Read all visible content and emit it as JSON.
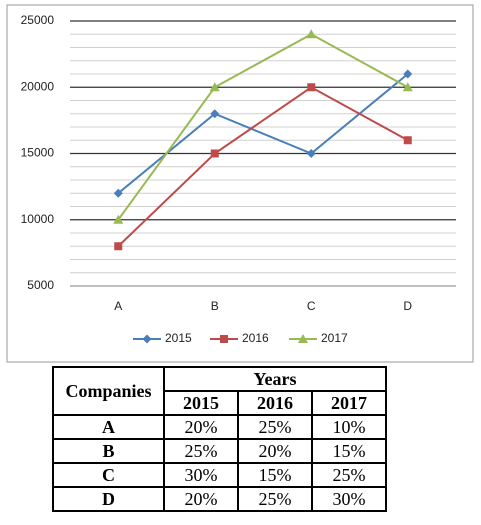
{
  "chart_data": {
    "type": "line",
    "categories": [
      "A",
      "B",
      "C",
      "D"
    ],
    "series": [
      {
        "name": "2015",
        "color": "#4a7ebb",
        "marker": "diamond",
        "values": [
          12000,
          18000,
          15000,
          21000
        ]
      },
      {
        "name": "2016",
        "color": "#be4b48",
        "marker": "square",
        "values": [
          8000,
          15000,
          20000,
          16000
        ]
      },
      {
        "name": "2017",
        "color": "#98b954",
        "marker": "triangle",
        "values": [
          10000,
          20000,
          24000,
          20000
        ]
      }
    ],
    "ylim": [
      5000,
      25000
    ],
    "yticks": [
      5000,
      10000,
      15000,
      20000,
      25000
    ],
    "grid": true,
    "minor_grid_step": 1000,
    "legend": "bottom"
  },
  "table": {
    "header": "Companies",
    "group": "Years",
    "columns": [
      "2015",
      "2016",
      "2017"
    ],
    "rows": [
      [
        "A",
        "20%",
        "25%",
        "10%"
      ],
      [
        "B",
        "25%",
        "20%",
        "15%"
      ],
      [
        "C",
        "30%",
        "15%",
        "25%"
      ],
      [
        "D",
        "20%",
        "25%",
        "30%"
      ]
    ]
  }
}
